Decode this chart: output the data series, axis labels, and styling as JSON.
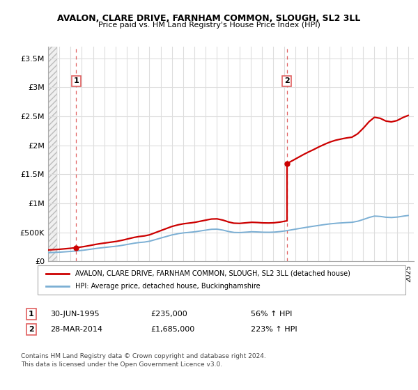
{
  "title": "AVALON, CLARE DRIVE, FARNHAM COMMON, SLOUGH, SL2 3LL",
  "subtitle": "Price paid vs. HM Land Registry's House Price Index (HPI)",
  "legend_label_red": "AVALON, CLARE DRIVE, FARNHAM COMMON, SLOUGH, SL2 3LL (detached house)",
  "legend_label_blue": "HPI: Average price, detached house, Buckinghamshire",
  "annotation1_date": "30-JUN-1995",
  "annotation1_price": "£235,000",
  "annotation1_hpi": "56% ↑ HPI",
  "annotation2_date": "28-MAR-2014",
  "annotation2_price": "£1,685,000",
  "annotation2_hpi": "223% ↑ HPI",
  "footnote": "Contains HM Land Registry data © Crown copyright and database right 2024.\nThis data is licensed under the Open Government Licence v3.0.",
  "red_color": "#cc0000",
  "blue_color": "#7bafd4",
  "dashed_red": "#e06060",
  "ylim_min": 0,
  "ylim_max": 3700000,
  "yticks": [
    0,
    500000,
    1000000,
    1500000,
    2000000,
    2500000,
    3000000,
    3500000
  ],
  "ytick_labels": [
    "£0",
    "£500K",
    "£1M",
    "£1.5M",
    "£2M",
    "£2.5M",
    "£3M",
    "£3.5M"
  ],
  "sale1_x": 1995.5,
  "sale1_y": 235000,
  "sale2_x": 2014.22,
  "sale2_y": 1685000,
  "xlim_min": 1993.0,
  "xlim_max": 2025.5,
  "hpi_years": [
    1993,
    1993.5,
    1994,
    1994.5,
    1995,
    1995.5,
    1996,
    1996.5,
    1997,
    1997.5,
    1998,
    1998.5,
    1999,
    1999.5,
    2000,
    2000.5,
    2001,
    2001.5,
    2002,
    2002.5,
    2003,
    2003.5,
    2004,
    2004.5,
    2005,
    2005.5,
    2006,
    2006.5,
    2007,
    2007.5,
    2008,
    2008.5,
    2009,
    2009.5,
    2010,
    2010.5,
    2011,
    2011.5,
    2012,
    2012.5,
    2013,
    2013.5,
    2014,
    2014.5,
    2015,
    2015.5,
    2016,
    2016.5,
    2017,
    2017.5,
    2018,
    2018.5,
    2019,
    2019.5,
    2020,
    2020.5,
    2021,
    2021.5,
    2022,
    2022.5,
    2023,
    2023.5,
    2024,
    2024.5,
    2025
  ],
  "hpi_vals": [
    148000,
    152000,
    157000,
    163000,
    170000,
    178000,
    188000,
    200000,
    215000,
    228000,
    238000,
    248000,
    258000,
    272000,
    290000,
    308000,
    322000,
    330000,
    345000,
    372000,
    400000,
    428000,
    455000,
    475000,
    490000,
    498000,
    508000,
    522000,
    538000,
    552000,
    555000,
    540000,
    515000,
    498000,
    495000,
    502000,
    510000,
    508000,
    502000,
    500000,
    502000,
    510000,
    522000,
    538000,
    555000,
    572000,
    588000,
    602000,
    618000,
    632000,
    645000,
    655000,
    662000,
    668000,
    672000,
    690000,
    720000,
    755000,
    780000,
    775000,
    760000,
    755000,
    762000,
    778000,
    790000
  ]
}
